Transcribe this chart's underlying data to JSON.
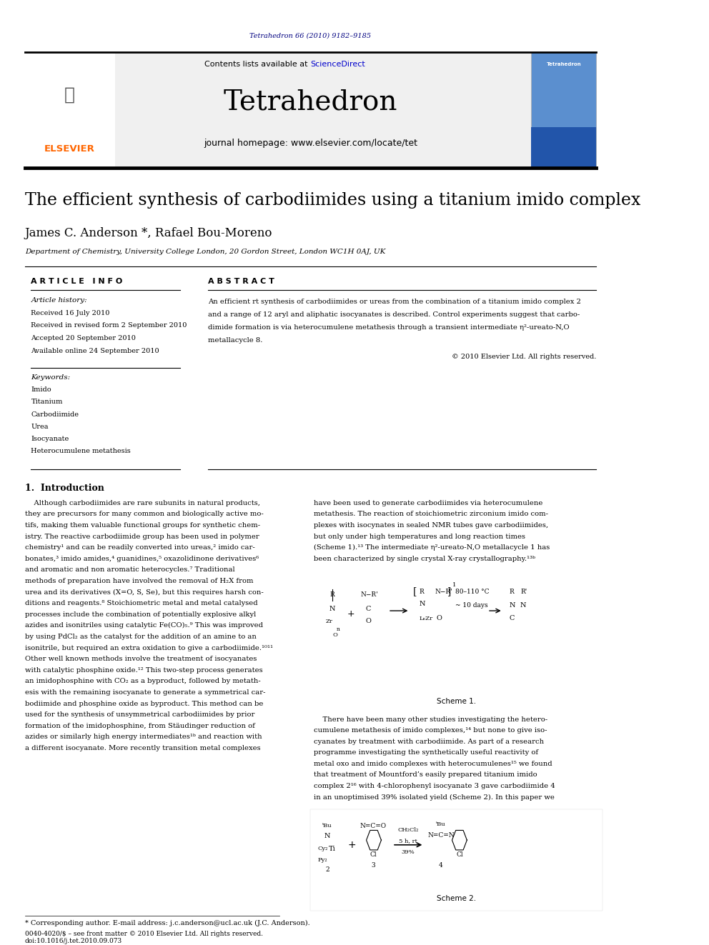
{
  "page_width": 9.92,
  "page_height": 13.23,
  "bg_color": "#ffffff",
  "header_journal_ref": "Tetrahedron 66 (2010) 9182–9185",
  "header_ref_color": "#000080",
  "header_ref_fontsize": 7,
  "journal_name": "Tetrahedron",
  "journal_name_fontsize": 28,
  "contents_text": "Contents lists available at ScienceDirect",
  "contents_fontsize": 8,
  "sciencedirect_color": "#0000cc",
  "homepage_text": "journal homepage: www.elsevier.com/locate/tet",
  "homepage_fontsize": 9,
  "elsevier_color": "#FF6600",
  "gray_header_bg": "#f0f0f0",
  "article_title": "The efficient synthesis of carbodiimides using a titanium imido complex",
  "article_title_fontsize": 17,
  "authors": "James C. Anderson *, Rafael Bou-Moreno",
  "authors_fontsize": 12,
  "affiliation": "Department of Chemistry, University College London, 20 Gordon Street, London WC1H 0AJ, UK",
  "affiliation_fontsize": 7.5,
  "article_info_header": "A R T I C L E   I N F O",
  "abstract_header": "A B S T R A C T",
  "section_header_fontsize": 8,
  "article_history_label": "Article history:",
  "received_line1": "Received 16 July 2010",
  "received_line2": "Received in revised form 2 September 2010",
  "accepted_line": "Accepted 20 September 2010",
  "available_line": "Available online 24 September 2010",
  "keywords_label": "Keywords:",
  "keywords": [
    "Imido",
    "Titanium",
    "Carbodiimide",
    "Urea",
    "Isocyanate",
    "Heterocumulene metathesis"
  ],
  "abstract_lines": [
    "An efficient rt synthesis of carbodiimides or ureas from the combination of a titanium imido complex 2",
    "and a range of 12 aryl and aliphatic isocyanates is described. Control experiments suggest that carbo-",
    "dimide formation is via heterocumulene metathesis through a transient intermediate η²-ureato-N,O",
    "metallacycle 8."
  ],
  "copyright_text": "© 2010 Elsevier Ltd. All rights reserved.",
  "abstract_fontsize": 7.5,
  "intro_heading": "1.  Introduction",
  "intro_heading_fontsize": 9,
  "intro_lines_left": [
    "    Although carbodiimides are rare subunits in natural products,",
    "they are precursors for many common and biologically active mo-",
    "tifs, making them valuable functional groups for synthetic chem-",
    "istry. The reactive carbodiimide group has been used in polymer",
    "chemistry¹ and can be readily converted into ureas,² imido car-",
    "bonates,³ imido amides,⁴ guanidines,⁵ oxazolidinone derivatives⁶",
    "and aromatic and non aromatic heterocycles.⁷ Traditional",
    "methods of preparation have involved the removal of H₂X from",
    "urea and its derivatives (X=O, S, Se), but this requires harsh con-",
    "ditions and reagents.⁸ Stoichiometric metal and metal catalysed",
    "processes include the combination of potentially explosive alkyl",
    "azides and isonitriles using catalytic Fe(CO)₅.⁹ This was improved",
    "by using PdCl₂ as the catalyst for the addition of an amine to an",
    "isonitrile, but required an extra oxidation to give a carbodiimide.¹⁰¹¹",
    "Other well known methods involve the treatment of isocyanates",
    "with catalytic phosphine oxide.¹² This two-step process generates",
    "an imidophosphine with CO₂ as a byproduct, followed by metath-",
    "esis with the remaining isocyanate to generate a symmetrical car-",
    "bodiimide and phosphine oxide as byproduct. This method can be",
    "used for the synthesis of unsymmetrical carbodiimides by prior",
    "formation of the imidophosphine, from Stäudinger reduction of",
    "azides or similarly high energy intermediates¹ᵇ and reaction with",
    "a different isocyanate. More recently transition metal complexes"
  ],
  "intro_lines_right": [
    "have been used to generate carbodiimides via heterocumulene",
    "metathesis. The reaction of stoichiometric zirconium imido com-",
    "plexes with isocynates in sealed NMR tubes gave carbodiimides,",
    "but only under high temperatures and long reaction times",
    "(Scheme 1).¹³ The intermediate η²-ureato-N,O metallacycle 1 has",
    "been characterized by single crystal X-ray crystallography.¹³ᵇ"
  ],
  "para2_lines": [
    "    There have been many other studies investigating the hetero-",
    "cumulene metathesis of imido complexes,¹⁴ but none to give iso-",
    "cyanates by treatment with carbodiimide. As part of a research",
    "programme investigating the synthetically useful reactivity of",
    "metal oxo and imido complexes with heterocumulenes¹⁵ we found",
    "that treatment of Mountford’s easily prepared titanium imido",
    "complex 2¹⁶ with 4-chlorophenyl isocyanate 3 gave carbodiimide 4",
    "in an unoptimised 39% isolated yield (Scheme 2). In this paper we"
  ],
  "intro_fontsize": 7.2,
  "scheme1_label": "Scheme 1.",
  "scheme2_label": "Scheme 2.",
  "footnote_text": "* Corresponding author. E-mail address: j.c.anderson@ucl.ac.uk (J.C. Anderson).",
  "footer_line1": "0040-4020/$ – see front matter © 2010 Elsevier Ltd. All rights reserved.",
  "footer_line2": "doi:10.1016/j.tet.2010.09.073",
  "footer_fontsize": 6.5,
  "footnote_fontsize": 7
}
